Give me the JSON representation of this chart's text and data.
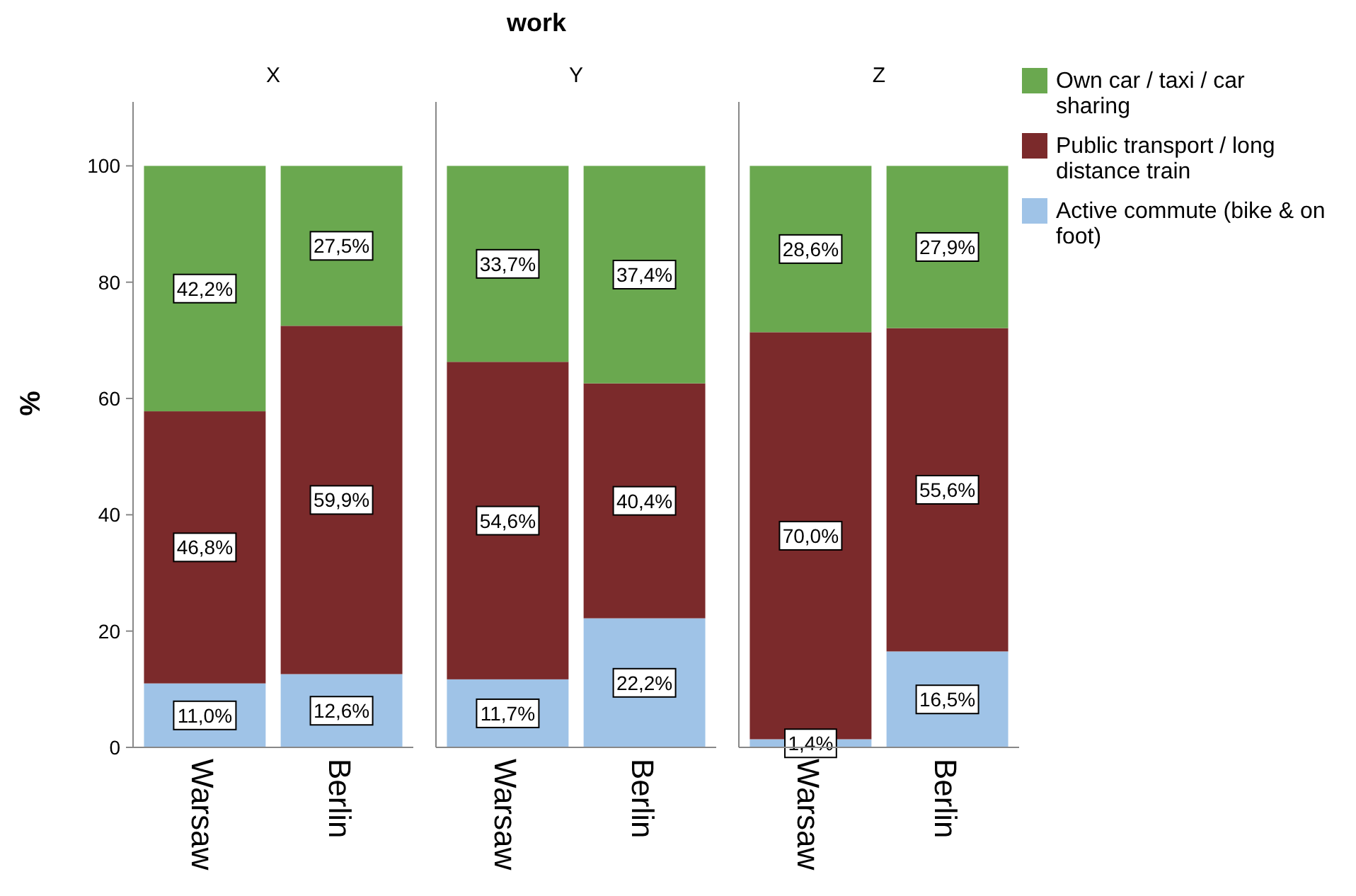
{
  "chart_data": [
    {
      "type": "bar",
      "subtitle": "X",
      "ylabel": "%",
      "categories": [
        "Warsaw",
        "Berlin"
      ],
      "stacked": true,
      "ylim": [
        0,
        111
      ],
      "yticks": [
        0,
        20,
        40,
        60,
        80,
        100
      ],
      "grid": false,
      "series": [
        {
          "color": "#9fc3e7",
          "values": [
            11.0,
            12.6
          ],
          "value_labels": [
            "11,0%",
            "12,6%"
          ]
        },
        {
          "color": "#7b2a2b",
          "values": [
            46.8,
            59.9
          ],
          "value_labels": [
            "46,8%",
            "59,9%"
          ]
        },
        {
          "color": "#6aa84f",
          "values": [
            42.2,
            27.5
          ],
          "value_labels": [
            "42,2%",
            "27,5%"
          ]
        }
      ]
    },
    {
      "type": "bar",
      "title": "work",
      "subtitle": "Y",
      "categories": [
        "Warsaw",
        "Berlin"
      ],
      "stacked": true,
      "ylim": [
        0,
        111
      ],
      "tick_labels": "x",
      "grid": false,
      "series": [
        {
          "color": "#9fc3e7",
          "values": [
            11.7,
            22.2
          ],
          "value_labels": [
            "11,7%",
            "22,2%"
          ]
        },
        {
          "color": "#7b2a2b",
          "values": [
            54.6,
            40.4
          ],
          "value_labels": [
            "54,6%",
            "40,4%"
          ]
        },
        {
          "color": "#6aa84f",
          "values": [
            33.7,
            37.4
          ],
          "value_labels": [
            "33,7%",
            "37,4%"
          ]
        }
      ]
    },
    {
      "type": "bar",
      "subtitle": "Z",
      "categories": [
        "Warsaw",
        "Berlin"
      ],
      "stacked": true,
      "ylim": [
        0,
        111
      ],
      "tick_labels": "x",
      "grid": false,
      "legend": "right",
      "series": [
        {
          "name": "Active commute (bike & on foot)",
          "color": "#9fc3e7",
          "values": [
            1.4,
            16.5
          ],
          "value_labels": [
            "1,4%",
            "16,5%"
          ]
        },
        {
          "name": "Public transport / long distance train",
          "color": "#7b2a2b",
          "values": [
            70.0,
            55.6
          ],
          "value_labels": [
            "70,0%",
            "55,6%"
          ]
        },
        {
          "name": "Own car / taxi / car sharing",
          "color": "#6aa84f",
          "values": [
            28.6,
            27.9
          ],
          "value_labels": [
            "28,6%",
            "27,9%"
          ]
        }
      ]
    }
  ]
}
